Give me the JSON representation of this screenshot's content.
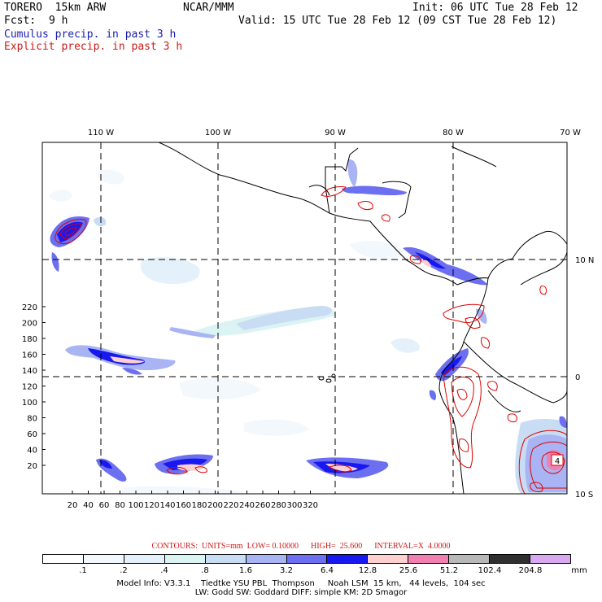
{
  "header": {
    "model": "TORERO  15km ARW",
    "org": "NCAR/MMM",
    "init": "Init: 06 UTC Tue 28 Feb 12",
    "fcst_label": "Fcst:",
    "fcst_value": "9 h",
    "valid": "Valid: 15 UTC Tue 28 Feb 12 (09 CST Tue 28 Feb 12)",
    "line_cumulus": "Cumulus precip. in past 3 h",
    "line_explicit": "Explicit precip. in past 3 h"
  },
  "map": {
    "lon_labels": [
      "110 W",
      "100 W",
      "90 W",
      "80 W",
      "70 W"
    ],
    "lat_labels": [
      "10 N",
      "0",
      "10 S"
    ],
    "y_ticks": [
      "20",
      "40",
      "60",
      "80",
      "100",
      "120",
      "140",
      "160",
      "180",
      "200",
      "220"
    ],
    "x_ticks": [
      "20",
      "40",
      "60",
      "80",
      "100",
      "120",
      "140",
      "160",
      "180",
      "200",
      "220",
      "240",
      "260",
      "280",
      "300",
      "320"
    ],
    "contour_label": "4"
  },
  "contours": {
    "text": "CONTOURS:  UNITS=mm  LOW= 0.10000      HIGH=  25.600      INTERVAL=X  4.0000"
  },
  "colorbar": {
    "labels": [
      ".1",
      ".2",
      ".4",
      ".8",
      "1.6",
      "3.2",
      "6.4",
      "12.8",
      "25.6",
      "51.2",
      "102.4",
      "204.8"
    ],
    "unit": "mm",
    "colors": [
      "#ffffff",
      "#f3f8fc",
      "#e4f1fa",
      "#dcf3f3",
      "#c8dcf4",
      "#a8b4f4",
      "#6c70f0",
      "#1818f0",
      "#ffd0d0",
      "#f080b0",
      "#b8b8b8",
      "#303030",
      "#d8a8f0"
    ]
  },
  "footer": {
    "line1": "Model Info: V3.3.1    Tiedtke YSU PBL  Thompson     Noah LSM  15 km,   44 levels,  104 sec",
    "line2": "LW: Godd SW: Goddard DIFF: simple KM: 2D Smagor"
  }
}
